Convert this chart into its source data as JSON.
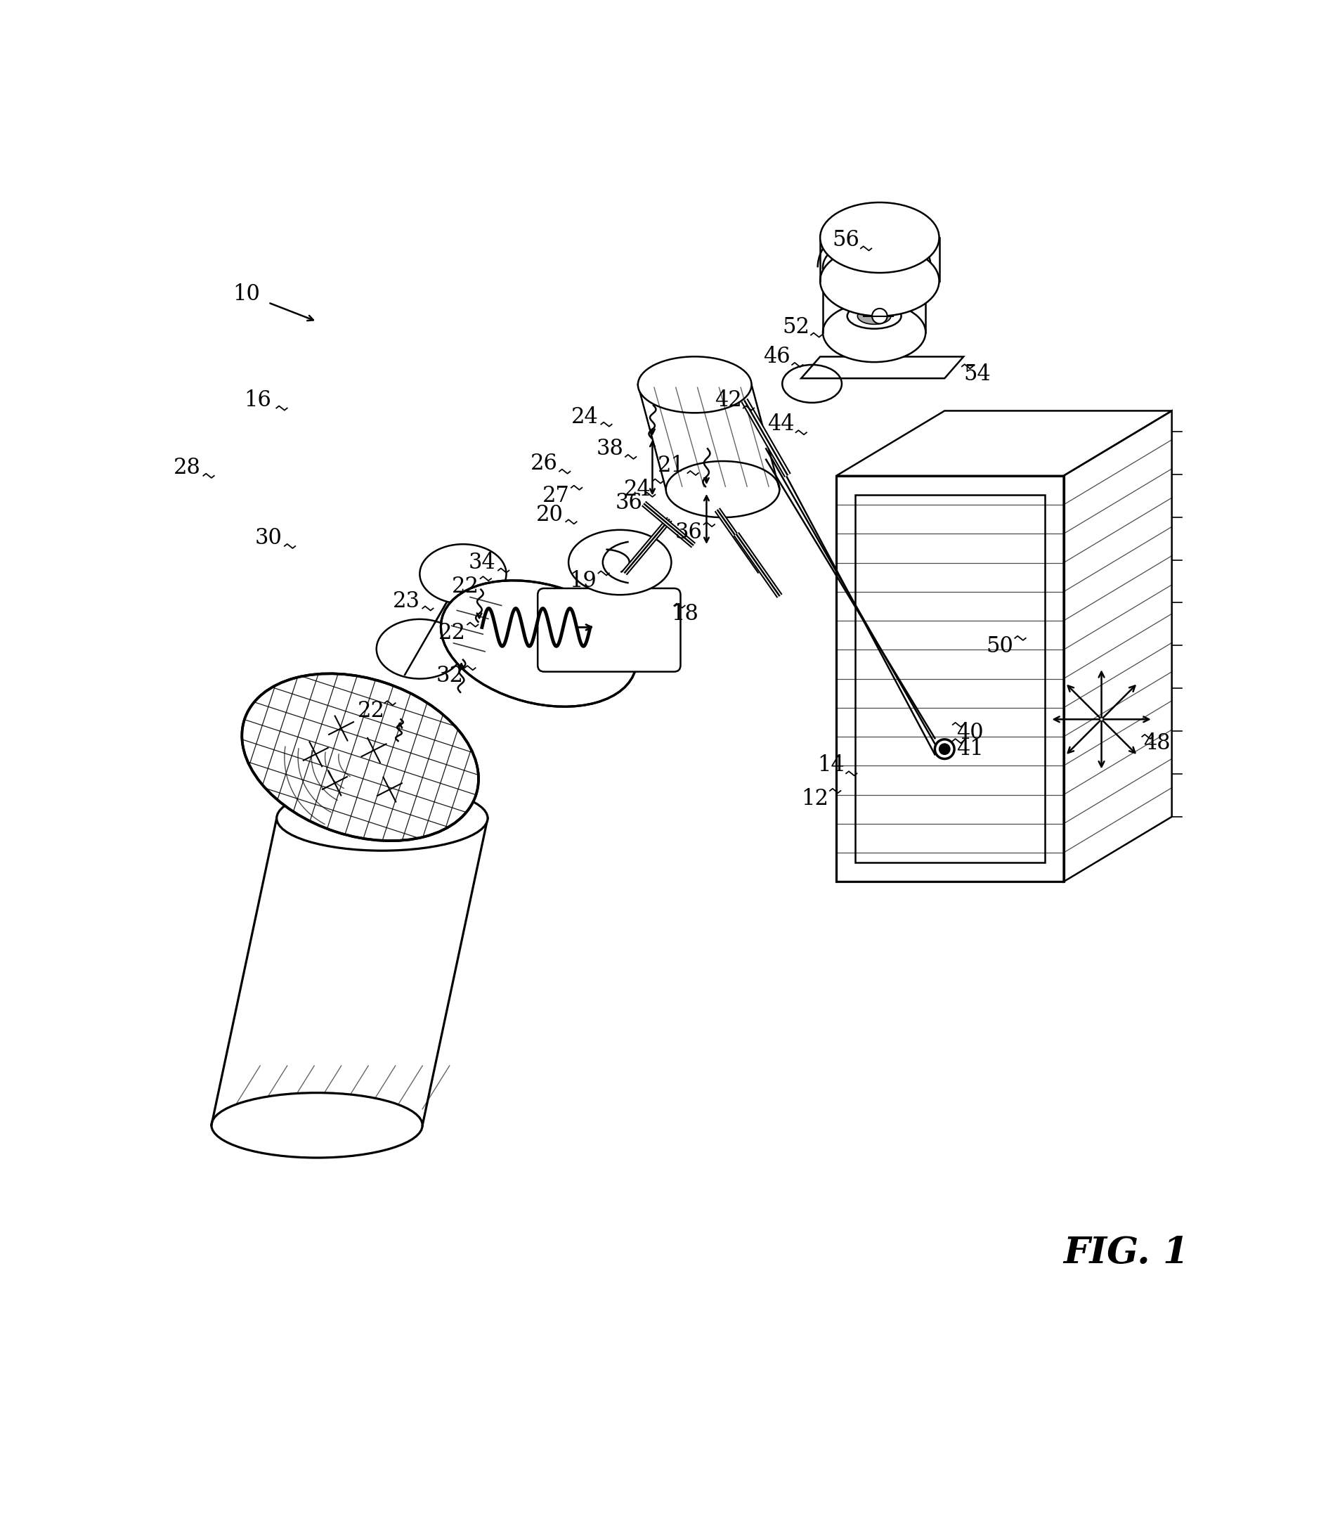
{
  "background_color": "#ffffff",
  "line_color": "#000000",
  "fig_label": "FIG. 1",
  "lw": 1.8
}
